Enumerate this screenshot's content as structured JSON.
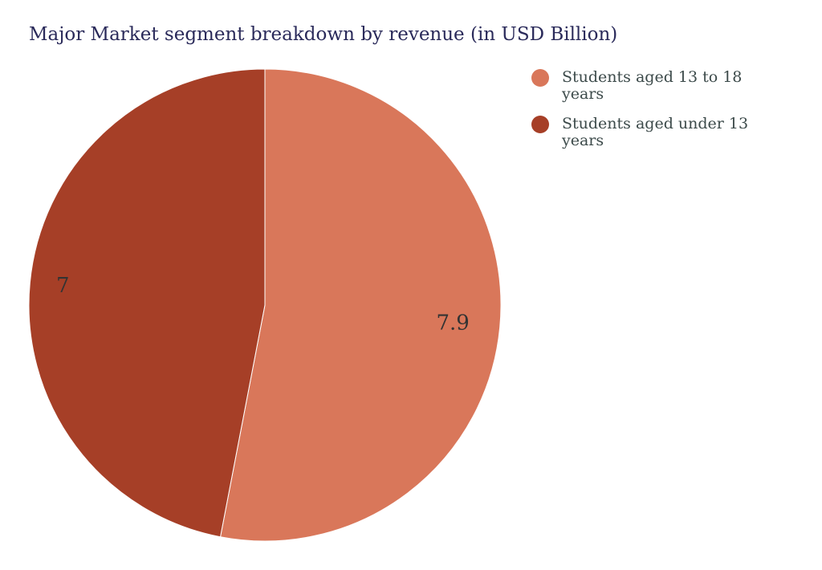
{
  "chart_data": {
    "type": "pie",
    "title": "Major Market segment breakdown by revenue (in USD Billion)",
    "slices": [
      {
        "label": "Students aged 13 to 18 years",
        "value": 7.9,
        "display": "7.9",
        "color": "#d9775a"
      },
      {
        "label": "Students aged under 13 years",
        "value": 7,
        "display": "7",
        "color": "#a63f27"
      }
    ],
    "direction": "clockwise",
    "start_angle": "top",
    "legend": "top-right"
  }
}
